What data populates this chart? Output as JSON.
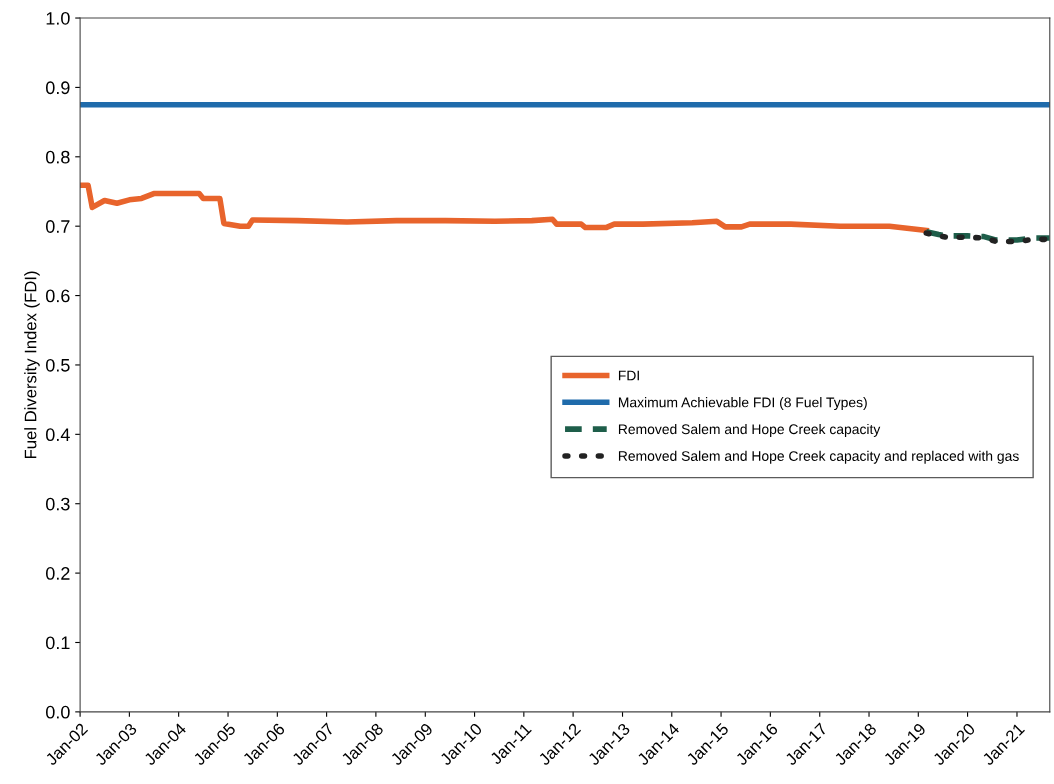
{
  "chart_data": {
    "type": "line",
    "ylabel": "Fuel Diversity Index (FDI)",
    "xlim": [
      "2002-01",
      "2021-09"
    ],
    "ylim": [
      0,
      1.0
    ],
    "yticks": [
      {
        "value": 0,
        "label": "0.0"
      },
      0.1,
      0.2,
      0.3,
      0.4,
      0.5,
      0.6,
      0.7,
      0.8,
      0.9,
      {
        "value": 1.0,
        "label": "1.0"
      }
    ],
    "xticks": [
      {
        "value": "2002-01",
        "label": "Jan-02"
      },
      {
        "value": "2003-01",
        "label": "Jan-03"
      },
      {
        "value": "2004-01",
        "label": "Jan-04"
      },
      {
        "value": "2005-01",
        "label": "Jan-05"
      },
      {
        "value": "2006-01",
        "label": "Jan-06"
      },
      {
        "value": "2007-01",
        "label": "Jan-07"
      },
      {
        "value": "2008-01",
        "label": "Jan-08"
      },
      {
        "value": "2009-01",
        "label": "Jan-09"
      },
      {
        "value": "2010-01",
        "label": "Jan-10"
      },
      {
        "value": "2011-01",
        "label": "Jan-11"
      },
      {
        "value": "2012-01",
        "label": "Jan-12"
      },
      {
        "value": "2013-01",
        "label": "Jan-13"
      },
      {
        "value": "2014-01",
        "label": "Jan-14"
      },
      {
        "value": "2015-01",
        "label": "Jan-15"
      },
      {
        "value": "2016-01",
        "label": "Jan-16"
      },
      {
        "value": "2017-01",
        "label": "Jan-17"
      },
      {
        "value": "2018-01",
        "label": "Jan-18"
      },
      {
        "value": "2019-01",
        "label": "Jan-19"
      },
      {
        "value": "2020-01",
        "label": "Jan-20"
      },
      {
        "value": "2021-01",
        "label": "Jan-21"
      }
    ],
    "grid": false,
    "legend": "right",
    "series": [
      {
        "name": "FDI",
        "color": "#e8642c",
        "line_style": "solid",
        "x": [
          "2002-01",
          "2002-03",
          "2002-04",
          "2002-07",
          "2002-10",
          "2003-01",
          "2003-04",
          "2003-07",
          "2003-10",
          "2004-01",
          "2004-06",
          "2004-07",
          "2004-11",
          "2004-12",
          "2005-04",
          "2005-06",
          "2005-07",
          "2006-06",
          "2007-06",
          "2008-06",
          "2009-06",
          "2010-06",
          "2011-03",
          "2011-08",
          "2011-09",
          "2012-03",
          "2012-04",
          "2012-09",
          "2012-11",
          "2013-06",
          "2014-06",
          "2014-12",
          "2015-02",
          "2015-06",
          "2015-08",
          "2016-06",
          "2017-06",
          "2018-06",
          "2019-03"
        ],
        "values": [
          0.759,
          0.759,
          0.727,
          0.737,
          0.733,
          0.738,
          0.74,
          0.747,
          0.747,
          0.747,
          0.747,
          0.74,
          0.74,
          0.704,
          0.7,
          0.7,
          0.709,
          0.708,
          0.706,
          0.708,
          0.708,
          0.707,
          0.708,
          0.71,
          0.703,
          0.703,
          0.698,
          0.698,
          0.703,
          0.703,
          0.705,
          0.707,
          0.699,
          0.699,
          0.703,
          0.703,
          0.7,
          0.7,
          0.694
        ]
      },
      {
        "name": "Maximum Achievable FDI (8 Fuel Types)",
        "color": "#1f6bab",
        "line_style": "solid",
        "x": [
          "2002-01",
          "2021-09"
        ],
        "values": [
          0.875,
          0.875
        ]
      },
      {
        "name": "Removed Salem and Hope Creek capacity",
        "color": "#1e5e4a",
        "line_style": "dashed",
        "x": [
          "2019-03",
          "2019-06",
          "2019-08",
          "2020-01",
          "2020-05",
          "2020-08",
          "2021-01",
          "2021-05",
          "2021-09"
        ],
        "values": [
          0.692,
          0.688,
          0.686,
          0.686,
          0.685,
          0.68,
          0.68,
          0.683,
          0.683
        ]
      },
      {
        "name": "Removed Salem and Hope Creek capacity and replaced with gas",
        "color": "#222222",
        "line_style": "dotted",
        "x": [
          "2019-03",
          "2019-06",
          "2019-08",
          "2020-01",
          "2020-05",
          "2020-08",
          "2021-01",
          "2021-05",
          "2021-09"
        ],
        "values": [
          0.69,
          0.686,
          0.684,
          0.684,
          0.683,
          0.678,
          0.678,
          0.681,
          0.681
        ]
      }
    ]
  }
}
